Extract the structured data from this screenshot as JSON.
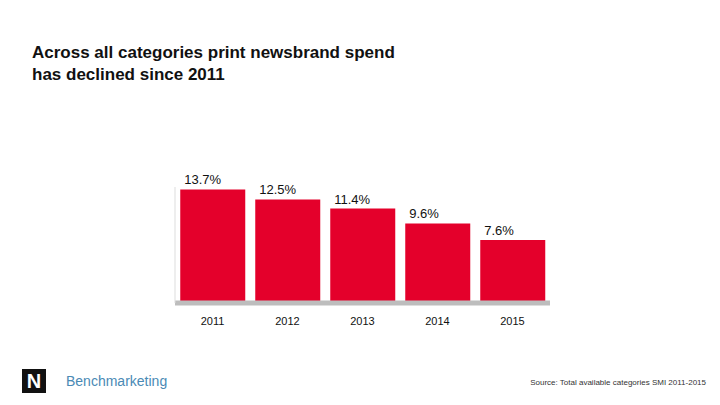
{
  "chart_data": {
    "type": "bar",
    "title": "Across all categories print newsbrand spend has declined since 2011",
    "categories": [
      "2011",
      "2012",
      "2013",
      "2014",
      "2015"
    ],
    "values": [
      13.7,
      12.5,
      11.4,
      9.6,
      7.6
    ],
    "value_labels": [
      "13.7%",
      "12.5%",
      "11.4%",
      "9.6%",
      "7.6%"
    ],
    "color": "#e4002b",
    "ylim": [
      0,
      14
    ],
    "yticks": [],
    "tick_labels": "x",
    "data_labels": true,
    "grid": false,
    "annotations": [
      "Source: Total available categories SMI 2011-2015",
      "Benchmarketing",
      "N"
    ]
  }
}
